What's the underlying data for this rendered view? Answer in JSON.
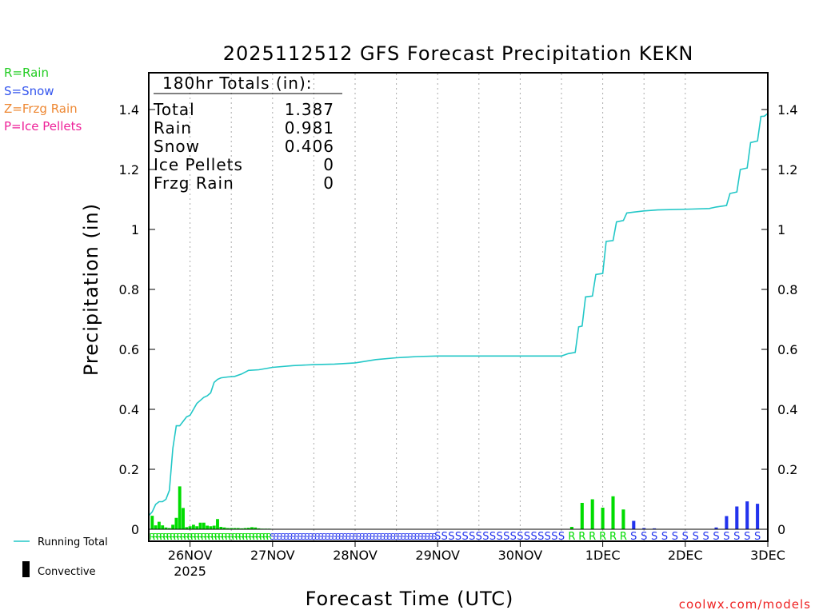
{
  "chart_data": {
    "type": "bar",
    "title": "2025112512 GFS Forecast Precipitation KEKN",
    "ylabel": "Precipitation (in)",
    "xlabel": "Forecast Time (UTC)",
    "ylim": [
      0,
      1.53
    ],
    "yticks": [
      {
        "value": 0,
        "label": "0"
      },
      {
        "value": 0.2,
        "label": "0.2"
      },
      {
        "value": 0.4,
        "label": "0.4"
      },
      {
        "value": 0.6,
        "label": "0.6"
      },
      {
        "value": 0.8,
        "label": "0.8"
      },
      {
        "value": 1.0,
        "label": "1"
      },
      {
        "value": 1.2,
        "label": "1.2"
      },
      {
        "value": 1.4,
        "label": "1.4"
      }
    ],
    "xlim_hours": [
      12,
      192
    ],
    "xticks": [
      {
        "hour": 24,
        "label": "26NOV",
        "sublabel": "2025"
      },
      {
        "hour": 48,
        "label": "27NOV",
        "sublabel": ""
      },
      {
        "hour": 72,
        "label": "28NOV",
        "sublabel": ""
      },
      {
        "hour": 96,
        "label": "29NOV",
        "sublabel": ""
      },
      {
        "hour": 120,
        "label": "30NOV",
        "sublabel": ""
      },
      {
        "hour": 144,
        "label": "1DEC",
        "sublabel": ""
      },
      {
        "hour": 168,
        "label": "2DEC",
        "sublabel": ""
      },
      {
        "hour": 192,
        "label": "3DEC",
        "sublabel": ""
      }
    ],
    "totals": {
      "heading": "180hr Totals (in):",
      "rows": [
        {
          "label": "Total",
          "value": "1.387"
        },
        {
          "label": "Rain",
          "value": "0.981"
        },
        {
          "label": "Snow",
          "value": "0.406"
        },
        {
          "label": "Ice Pellets",
          "value": "0"
        },
        {
          "label": "Frzg Rain",
          "value": "0"
        }
      ]
    },
    "legend_types": [
      {
        "text": "R=Rain",
        "color": "#22cc22"
      },
      {
        "text": "S=Snow",
        "color": "#3355ee"
      },
      {
        "text": "Z=Frzg Rain",
        "color": "#ee8833"
      },
      {
        "text": "P=Ice Pellets",
        "color": "#ee2299"
      }
    ],
    "legend_lines": [
      {
        "text": "Running Total",
        "kind": "line",
        "color": "#22c7c7"
      },
      {
        "text": "Convective",
        "kind": "bar",
        "color": "#000000"
      }
    ],
    "credit": "coolwx.com/models",
    "colors": {
      "rain": "#00dd00",
      "snow": "#2233ee",
      "frzg": "#ee8833",
      "running": "#22c7c7",
      "grid": "#aaaaaa",
      "axis": "#000000"
    },
    "series": [
      {
        "name": "Hourly Precipitation",
        "bars": [
          {
            "hour": 13,
            "value": 0.045,
            "type": "R"
          },
          {
            "hour": 14,
            "value": 0.013,
            "type": "R"
          },
          {
            "hour": 15,
            "value": 0.025,
            "type": "R"
          },
          {
            "hour": 16,
            "value": 0.013,
            "type": "R"
          },
          {
            "hour": 17,
            "value": 0.006,
            "type": "R"
          },
          {
            "hour": 18,
            "value": 0.004,
            "type": "R"
          },
          {
            "hour": 19,
            "value": 0.015,
            "type": "R"
          },
          {
            "hour": 20,
            "value": 0.038,
            "type": "R"
          },
          {
            "hour": 21,
            "value": 0.143,
            "type": "R"
          },
          {
            "hour": 22,
            "value": 0.071,
            "type": "R"
          },
          {
            "hour": 23,
            "value": 0.007,
            "type": "R"
          },
          {
            "hour": 24,
            "value": 0.01,
            "type": "R"
          },
          {
            "hour": 25,
            "value": 0.015,
            "type": "R"
          },
          {
            "hour": 26,
            "value": 0.01,
            "type": "R"
          },
          {
            "hour": 27,
            "value": 0.022,
            "type": "R"
          },
          {
            "hour": 28,
            "value": 0.022,
            "type": "R"
          },
          {
            "hour": 29,
            "value": 0.012,
            "type": "R"
          },
          {
            "hour": 30,
            "value": 0.01,
            "type": "R"
          },
          {
            "hour": 31,
            "value": 0.012,
            "type": "R"
          },
          {
            "hour": 32,
            "value": 0.034,
            "type": "R"
          },
          {
            "hour": 33,
            "value": 0.008,
            "type": "R"
          },
          {
            "hour": 34,
            "value": 0.006,
            "type": "R"
          },
          {
            "hour": 35,
            "value": 0.004,
            "type": "R"
          },
          {
            "hour": 36,
            "value": 0.004,
            "type": "R"
          },
          {
            "hour": 37,
            "value": 0.004,
            "type": "R"
          },
          {
            "hour": 38,
            "value": 0.004,
            "type": "R"
          },
          {
            "hour": 39,
            "value": 0.003,
            "type": "R"
          },
          {
            "hour": 40,
            "value": 0.004,
            "type": "R"
          },
          {
            "hour": 41,
            "value": 0.005,
            "type": "R"
          },
          {
            "hour": 42,
            "value": 0.007,
            "type": "R"
          },
          {
            "hour": 43,
            "value": 0.006,
            "type": "R"
          },
          {
            "hour": 44,
            "value": 0.003,
            "type": "R"
          },
          {
            "hour": 45,
            "value": 0.002,
            "type": "R"
          },
          {
            "hour": 46,
            "value": 0.002,
            "type": "R"
          },
          {
            "hour": 47,
            "value": 0.002,
            "type": "R"
          },
          {
            "hour": 135,
            "value": 0.008,
            "type": "R"
          },
          {
            "hour": 138,
            "value": 0.088,
            "type": "R"
          },
          {
            "hour": 141,
            "value": 0.1,
            "type": "R"
          },
          {
            "hour": 144,
            "value": 0.072,
            "type": "R"
          },
          {
            "hour": 147,
            "value": 0.11,
            "type": "R"
          },
          {
            "hour": 150,
            "value": 0.066,
            "type": "R"
          },
          {
            "hour": 153,
            "value": 0.028,
            "type": "S"
          },
          {
            "hour": 156,
            "value": 0.004,
            "type": "S"
          },
          {
            "hour": 159,
            "value": 0.003,
            "type": "S"
          },
          {
            "hour": 177,
            "value": 0.006,
            "type": "S"
          },
          {
            "hour": 180,
            "value": 0.044,
            "type": "S"
          },
          {
            "hour": 183,
            "value": 0.076,
            "type": "S"
          },
          {
            "hour": 186,
            "value": 0.093,
            "type": "S"
          },
          {
            "hour": 189,
            "value": 0.085,
            "type": "S"
          }
        ]
      },
      {
        "name": "Running Total",
        "points": [
          {
            "hour": 12,
            "value": 0.045
          },
          {
            "hour": 13,
            "value": 0.058
          },
          {
            "hour": 14,
            "value": 0.083
          },
          {
            "hour": 15,
            "value": 0.092
          },
          {
            "hour": 16,
            "value": 0.092
          },
          {
            "hour": 17,
            "value": 0.1
          },
          {
            "hour": 18,
            "value": 0.13
          },
          {
            "hour": 19,
            "value": 0.27
          },
          {
            "hour": 20,
            "value": 0.345
          },
          {
            "hour": 21,
            "value": 0.345
          },
          {
            "hour": 22,
            "value": 0.36
          },
          {
            "hour": 23,
            "value": 0.375
          },
          {
            "hour": 24,
            "value": 0.38
          },
          {
            "hour": 25,
            "value": 0.4
          },
          {
            "hour": 26,
            "value": 0.42
          },
          {
            "hour": 27,
            "value": 0.43
          },
          {
            "hour": 28,
            "value": 0.44
          },
          {
            "hour": 29,
            "value": 0.445
          },
          {
            "hour": 30,
            "value": 0.455
          },
          {
            "hour": 31,
            "value": 0.49
          },
          {
            "hour": 32,
            "value": 0.5
          },
          {
            "hour": 33,
            "value": 0.505
          },
          {
            "hour": 35,
            "value": 0.508
          },
          {
            "hour": 37,
            "value": 0.51
          },
          {
            "hour": 39,
            "value": 0.518
          },
          {
            "hour": 41,
            "value": 0.53
          },
          {
            "hour": 44,
            "value": 0.532
          },
          {
            "hour": 48,
            "value": 0.54
          },
          {
            "hour": 54,
            "value": 0.546
          },
          {
            "hour": 60,
            "value": 0.549
          },
          {
            "hour": 66,
            "value": 0.551
          },
          {
            "hour": 72,
            "value": 0.555
          },
          {
            "hour": 78,
            "value": 0.566
          },
          {
            "hour": 84,
            "value": 0.572
          },
          {
            "hour": 90,
            "value": 0.576
          },
          {
            "hour": 96,
            "value": 0.578
          },
          {
            "hour": 108,
            "value": 0.578
          },
          {
            "hour": 120,
            "value": 0.578
          },
          {
            "hour": 132,
            "value": 0.578
          },
          {
            "hour": 134,
            "value": 0.586
          },
          {
            "hour": 136,
            "value": 0.59
          },
          {
            "hour": 137,
            "value": 0.675
          },
          {
            "hour": 138,
            "value": 0.678
          },
          {
            "hour": 139,
            "value": 0.775
          },
          {
            "hour": 141,
            "value": 0.778
          },
          {
            "hour": 142,
            "value": 0.85
          },
          {
            "hour": 144,
            "value": 0.853
          },
          {
            "hour": 145,
            "value": 0.96
          },
          {
            "hour": 147,
            "value": 0.963
          },
          {
            "hour": 148,
            "value": 1.025
          },
          {
            "hour": 150,
            "value": 1.03
          },
          {
            "hour": 151,
            "value": 1.055
          },
          {
            "hour": 153,
            "value": 1.058
          },
          {
            "hour": 156,
            "value": 1.062
          },
          {
            "hour": 160,
            "value": 1.065
          },
          {
            "hour": 170,
            "value": 1.068
          },
          {
            "hour": 175,
            "value": 1.07
          },
          {
            "hour": 177,
            "value": 1.075
          },
          {
            "hour": 180,
            "value": 1.08
          },
          {
            "hour": 181,
            "value": 1.12
          },
          {
            "hour": 183,
            "value": 1.125
          },
          {
            "hour": 184,
            "value": 1.2
          },
          {
            "hour": 186,
            "value": 1.205
          },
          {
            "hour": 187,
            "value": 1.29
          },
          {
            "hour": 189,
            "value": 1.295
          },
          {
            "hour": 190,
            "value": 1.377
          },
          {
            "hour": 191,
            "value": 1.378
          },
          {
            "hour": 192,
            "value": 1.387
          }
        ]
      }
    ],
    "type_markers": [
      {
        "from": 13,
        "to": 47,
        "step": 1,
        "type": "R"
      },
      {
        "from": 48,
        "to": 95,
        "step": 1,
        "type": "S"
      },
      {
        "from": 96,
        "to": 132,
        "step": 2,
        "type": "S"
      },
      {
        "from": 135,
        "to": 150,
        "step": 3,
        "type": "R"
      },
      {
        "from": 153,
        "to": 191,
        "step": 3,
        "type": "S"
      }
    ]
  }
}
